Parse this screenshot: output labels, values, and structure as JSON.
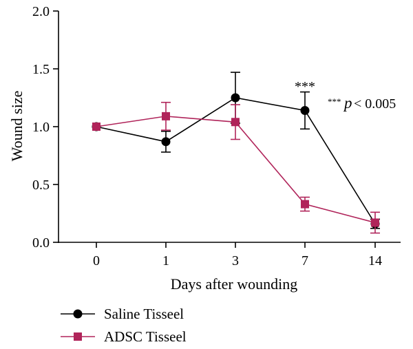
{
  "chart_data": {
    "type": "line",
    "xlabel": "Days after wounding",
    "ylabel": "Wound size",
    "categories": [
      "0",
      "1",
      "3",
      "7",
      "14"
    ],
    "ylim": [
      0,
      2.0
    ],
    "yticks": [
      "0.0",
      "0.5",
      "1.0",
      "1.5",
      "2.0"
    ],
    "grid": false,
    "legend_position": "bottom-left",
    "series": [
      {
        "name": "Saline Tisseel",
        "color": "#000000",
        "marker": "circle",
        "values": [
          1.0,
          0.87,
          1.25,
          1.14,
          0.16
        ],
        "errors": [
          0.0,
          0.09,
          0.22,
          0.16,
          0.04
        ]
      },
      {
        "name": "ADSC Tisseel",
        "color": "#b0245a",
        "marker": "square",
        "values": [
          1.0,
          1.09,
          1.04,
          0.33,
          0.17
        ],
        "errors": [
          0.0,
          0.12,
          0.15,
          0.06,
          0.09
        ]
      }
    ],
    "annotations": {
      "significance_marker": "***",
      "significance_category": "7",
      "pvalue_marker": "***",
      "pvalue_symbol": "p",
      "pvalue_text": " < 0.005"
    }
  }
}
